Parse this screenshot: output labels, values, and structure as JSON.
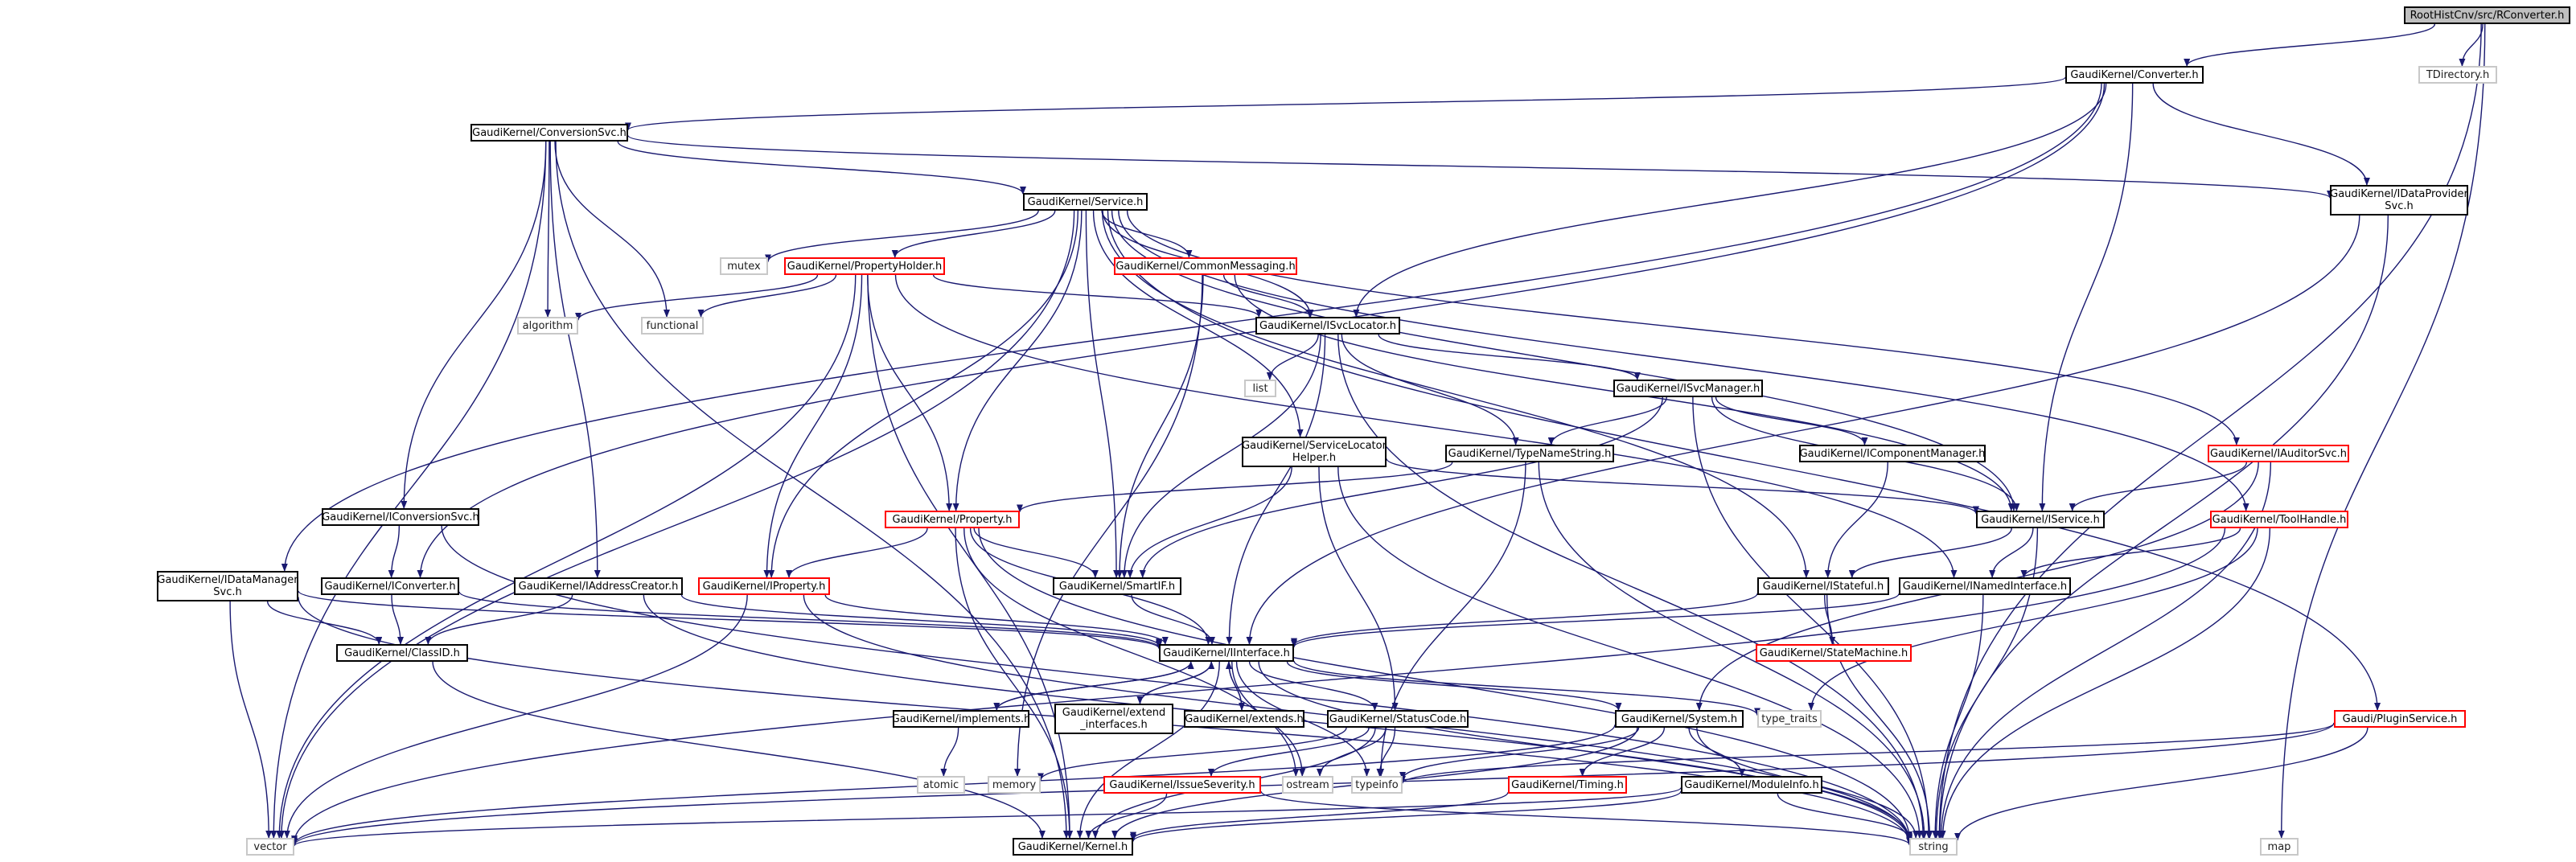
{
  "colors": {
    "edge": "#191970",
    "box": "#000000",
    "incomplete": "#ff0000",
    "external": "#c8c8c8",
    "root_fill": "#bfbfbf"
  },
  "nodes": [
    {
      "id": "root",
      "label": "RootHistCnv/src/RConverter.h",
      "kind": "root"
    },
    {
      "id": "converter",
      "label": "GaudiKernel/Converter.h",
      "kind": "header"
    },
    {
      "id": "tdirectory",
      "label": "TDirectory.h",
      "kind": "external"
    },
    {
      "id": "conversionsvc",
      "label": "GaudiKernel/ConversionSvc.h",
      "kind": "header"
    },
    {
      "id": "idataprovider",
      "label": "GaudiKernel/IDataProvider\nSvc.h",
      "kind": "header"
    },
    {
      "id": "service",
      "label": "GaudiKernel/Service.h",
      "kind": "header"
    },
    {
      "id": "mutex",
      "label": "mutex",
      "kind": "external"
    },
    {
      "id": "propertyholder",
      "label": "GaudiKernel/PropertyHolder.h",
      "kind": "incomplete"
    },
    {
      "id": "commonmessaging",
      "label": "GaudiKernel/CommonMessaging.h",
      "kind": "incomplete"
    },
    {
      "id": "algorithm",
      "label": "algorithm",
      "kind": "external"
    },
    {
      "id": "functional",
      "label": "functional",
      "kind": "external"
    },
    {
      "id": "isvclocator",
      "label": "GaudiKernel/ISvcLocator.h",
      "kind": "header"
    },
    {
      "id": "list",
      "label": "list",
      "kind": "external"
    },
    {
      "id": "isvcmanager",
      "label": "GaudiKernel/ISvcManager.h",
      "kind": "header"
    },
    {
      "id": "servicelocatorhelper",
      "label": "GaudiKernel/ServiceLocator\nHelper.h",
      "kind": "header"
    },
    {
      "id": "typenamestring",
      "label": "GaudiKernel/TypeNameString.h",
      "kind": "header"
    },
    {
      "id": "icomponentmanager",
      "label": "GaudiKernel/IComponentManager.h",
      "kind": "header"
    },
    {
      "id": "iauditorsvc",
      "label": "GaudiKernel/IAuditorSvc.h",
      "kind": "incomplete"
    },
    {
      "id": "iconversionsvc",
      "label": "GaudiKernel/IConversionSvc.h",
      "kind": "header"
    },
    {
      "id": "property",
      "label": "GaudiKernel/Property.h",
      "kind": "incomplete"
    },
    {
      "id": "iservice",
      "label": "GaudiKernel/IService.h",
      "kind": "header"
    },
    {
      "id": "toolhandle",
      "label": "GaudiKernel/ToolHandle.h",
      "kind": "incomplete"
    },
    {
      "id": "idatamanager",
      "label": "GaudiKernel/IDataManager\nSvc.h",
      "kind": "header"
    },
    {
      "id": "iconverter",
      "label": "GaudiKernel/IConverter.h",
      "kind": "header"
    },
    {
      "id": "iaddresscreator",
      "label": "GaudiKernel/IAddressCreator.h",
      "kind": "header"
    },
    {
      "id": "iproperty",
      "label": "GaudiKernel/IProperty.h",
      "kind": "incomplete"
    },
    {
      "id": "smartif",
      "label": "GaudiKernel/SmartIF.h",
      "kind": "header"
    },
    {
      "id": "istateful",
      "label": "GaudiKernel/IStateful.h",
      "kind": "header"
    },
    {
      "id": "inamedinterface",
      "label": "GaudiKernel/INamedInterface.h",
      "kind": "header"
    },
    {
      "id": "statemachine",
      "label": "GaudiKernel/StateMachine.h",
      "kind": "incomplete"
    },
    {
      "id": "classid",
      "label": "GaudiKernel/ClassID.h",
      "kind": "header"
    },
    {
      "id": "iinterface",
      "label": "GaudiKernel/IInterface.h",
      "kind": "header"
    },
    {
      "id": "implements",
      "label": "GaudiKernel/implements.h",
      "kind": "header"
    },
    {
      "id": "extend_interfaces",
      "label": "GaudiKernel/extend\n_interfaces.h",
      "kind": "header"
    },
    {
      "id": "extends",
      "label": "GaudiKernel/extends.h",
      "kind": "header"
    },
    {
      "id": "statuscode",
      "label": "GaudiKernel/StatusCode.h",
      "kind": "header"
    },
    {
      "id": "type_traits",
      "label": "type_traits",
      "kind": "external"
    },
    {
      "id": "system",
      "label": "GaudiKernel/System.h",
      "kind": "header"
    },
    {
      "id": "pluginservice",
      "label": "Gaudi/PluginService.h",
      "kind": "incomplete"
    },
    {
      "id": "atomic",
      "label": "atomic",
      "kind": "external"
    },
    {
      "id": "memory",
      "label": "memory",
      "kind": "external"
    },
    {
      "id": "ostream",
      "label": "ostream",
      "kind": "external"
    },
    {
      "id": "typeinfo",
      "label": "typeinfo",
      "kind": "external"
    },
    {
      "id": "issueseverity",
      "label": "GaudiKernel/IssueSeverity.h",
      "kind": "incomplete"
    },
    {
      "id": "timing",
      "label": "GaudiKernel/Timing.h",
      "kind": "incomplete"
    },
    {
      "id": "moduleinfo",
      "label": "GaudiKernel/ModuleInfo.h",
      "kind": "header"
    },
    {
      "id": "vector",
      "label": "vector",
      "kind": "external"
    },
    {
      "id": "kernel",
      "label": "GaudiKernel/Kernel.h",
      "kind": "header"
    },
    {
      "id": "string",
      "label": "string",
      "kind": "external"
    },
    {
      "id": "map",
      "label": "map",
      "kind": "external"
    }
  ],
  "edges": [
    [
      "root",
      "converter"
    ],
    [
      "root",
      "tdirectory"
    ],
    [
      "root",
      "string"
    ],
    [
      "root",
      "map"
    ],
    [
      "converter",
      "conversionsvc"
    ],
    [
      "converter",
      "idataprovider"
    ],
    [
      "converter",
      "isvclocator"
    ],
    [
      "converter",
      "iservice"
    ],
    [
      "converter",
      "idatamanager"
    ],
    [
      "converter",
      "iconverter"
    ],
    [
      "conversionsvc",
      "service"
    ],
    [
      "conversionsvc",
      "idataprovider"
    ],
    [
      "conversionsvc",
      "algorithm"
    ],
    [
      "conversionsvc",
      "functional"
    ],
    [
      "conversionsvc",
      "iconversionsvc"
    ],
    [
      "conversionsvc",
      "iaddresscreator"
    ],
    [
      "conversionsvc",
      "vector"
    ],
    [
      "conversionsvc",
      "kernel"
    ],
    [
      "idataprovider",
      "iinterface"
    ],
    [
      "idataprovider",
      "string"
    ],
    [
      "service",
      "mutex"
    ],
    [
      "service",
      "propertyholder"
    ],
    [
      "service",
      "commonmessaging"
    ],
    [
      "service",
      "isvclocator"
    ],
    [
      "service",
      "servicelocatorhelper"
    ],
    [
      "service",
      "iauditorsvc"
    ],
    [
      "service",
      "property"
    ],
    [
      "service",
      "iproperty"
    ],
    [
      "service",
      "smartif"
    ],
    [
      "service",
      "iservice"
    ],
    [
      "service",
      "istateful"
    ],
    [
      "service",
      "toolhandle"
    ],
    [
      "service",
      "pluginservice"
    ],
    [
      "service",
      "vector"
    ],
    [
      "propertyholder",
      "algorithm"
    ],
    [
      "propertyholder",
      "functional"
    ],
    [
      "propertyholder",
      "isvclocator"
    ],
    [
      "propertyholder",
      "property"
    ],
    [
      "propertyholder",
      "iproperty"
    ],
    [
      "propertyholder",
      "inamedinterface"
    ],
    [
      "propertyholder",
      "vector"
    ],
    [
      "propertyholder",
      "kernel"
    ],
    [
      "commonmessaging",
      "isvclocator"
    ],
    [
      "commonmessaging",
      "smartif"
    ],
    [
      "commonmessaging",
      "iservice"
    ],
    [
      "commonmessaging",
      "memory"
    ],
    [
      "isvclocator",
      "list"
    ],
    [
      "isvclocator",
      "isvcmanager"
    ],
    [
      "isvclocator",
      "typenamestring"
    ],
    [
      "isvclocator",
      "smartif"
    ],
    [
      "isvclocator",
      "iinterface"
    ],
    [
      "isvclocator",
      "string"
    ],
    [
      "isvcmanager",
      "typenamestring"
    ],
    [
      "isvcmanager",
      "icomponentmanager"
    ],
    [
      "isvcmanager",
      "iservice"
    ],
    [
      "isvcmanager",
      "smartif"
    ],
    [
      "isvcmanager",
      "string"
    ],
    [
      "servicelocatorhelper",
      "smartif"
    ],
    [
      "servicelocatorhelper",
      "iservice"
    ],
    [
      "servicelocatorhelper",
      "statuscode"
    ],
    [
      "servicelocatorhelper",
      "string"
    ],
    [
      "typenamestring",
      "property"
    ],
    [
      "typenamestring",
      "typeinfo"
    ],
    [
      "typenamestring",
      "string"
    ],
    [
      "icomponentmanager",
      "istateful"
    ],
    [
      "iauditorsvc",
      "iservice"
    ],
    [
      "iauditorsvc",
      "system"
    ],
    [
      "iauditorsvc",
      "string"
    ],
    [
      "iconversionsvc",
      "iconverter"
    ],
    [
      "iconversionsvc",
      "string"
    ],
    [
      "property",
      "iproperty"
    ],
    [
      "property",
      "smartif"
    ],
    [
      "property",
      "iinterface"
    ],
    [
      "property",
      "kernel"
    ],
    [
      "property",
      "string"
    ],
    [
      "property",
      "ostream"
    ],
    [
      "iservice",
      "istateful"
    ],
    [
      "iservice",
      "inamedinterface"
    ],
    [
      "iservice",
      "string"
    ],
    [
      "toolhandle",
      "inamedinterface"
    ],
    [
      "toolhandle",
      "type_traits"
    ],
    [
      "toolhandle",
      "string"
    ],
    [
      "toolhandle",
      "vector"
    ],
    [
      "idatamanager",
      "iinterface"
    ],
    [
      "idatamanager",
      "classid"
    ],
    [
      "idatamanager",
      "vector"
    ],
    [
      "idatamanager",
      "string"
    ],
    [
      "iconverter",
      "classid"
    ],
    [
      "iconverter",
      "iinterface"
    ],
    [
      "iaddresscreator",
      "classid"
    ],
    [
      "iaddresscreator",
      "iinterface"
    ],
    [
      "iaddresscreator",
      "string"
    ],
    [
      "iproperty",
      "iinterface"
    ],
    [
      "iproperty",
      "vector"
    ],
    [
      "iproperty",
      "string"
    ],
    [
      "smartif",
      "iinterface"
    ],
    [
      "istateful",
      "iinterface"
    ],
    [
      "istateful",
      "statemachine"
    ],
    [
      "istateful",
      "string"
    ],
    [
      "inamedinterface",
      "iinterface"
    ],
    [
      "inamedinterface",
      "string"
    ],
    [
      "classid",
      "kernel"
    ],
    [
      "iinterface",
      "implements"
    ],
    [
      "iinterface",
      "extend_interfaces"
    ],
    [
      "iinterface",
      "extends"
    ],
    [
      "iinterface",
      "statuscode"
    ],
    [
      "iinterface",
      "type_traits"
    ],
    [
      "iinterface",
      "system"
    ],
    [
      "iinterface",
      "typeinfo"
    ],
    [
      "iinterface",
      "ostream"
    ],
    [
      "iinterface",
      "kernel"
    ],
    [
      "iinterface",
      "string"
    ],
    [
      "implements",
      "iinterface"
    ],
    [
      "implements",
      "atomic"
    ],
    [
      "extend_interfaces",
      "iinterface"
    ],
    [
      "extends",
      "iinterface"
    ],
    [
      "statuscode",
      "issueseverity"
    ],
    [
      "statuscode",
      "kernel"
    ],
    [
      "statuscode",
      "ostream"
    ],
    [
      "statuscode",
      "typeinfo"
    ],
    [
      "statuscode",
      "memory"
    ],
    [
      "system",
      "timing"
    ],
    [
      "system",
      "moduleinfo"
    ],
    [
      "system",
      "typeinfo"
    ],
    [
      "system",
      "kernel"
    ],
    [
      "system",
      "vector"
    ],
    [
      "system",
      "string"
    ],
    [
      "pluginservice",
      "string"
    ],
    [
      "pluginservice",
      "typeinfo"
    ],
    [
      "pluginservice",
      "vector"
    ],
    [
      "issueseverity",
      "kernel"
    ],
    [
      "issueseverity",
      "string"
    ],
    [
      "timing",
      "kernel"
    ],
    [
      "moduleinfo",
      "kernel"
    ],
    [
      "moduleinfo",
      "string"
    ],
    [
      "moduleinfo",
      "vector"
    ]
  ]
}
